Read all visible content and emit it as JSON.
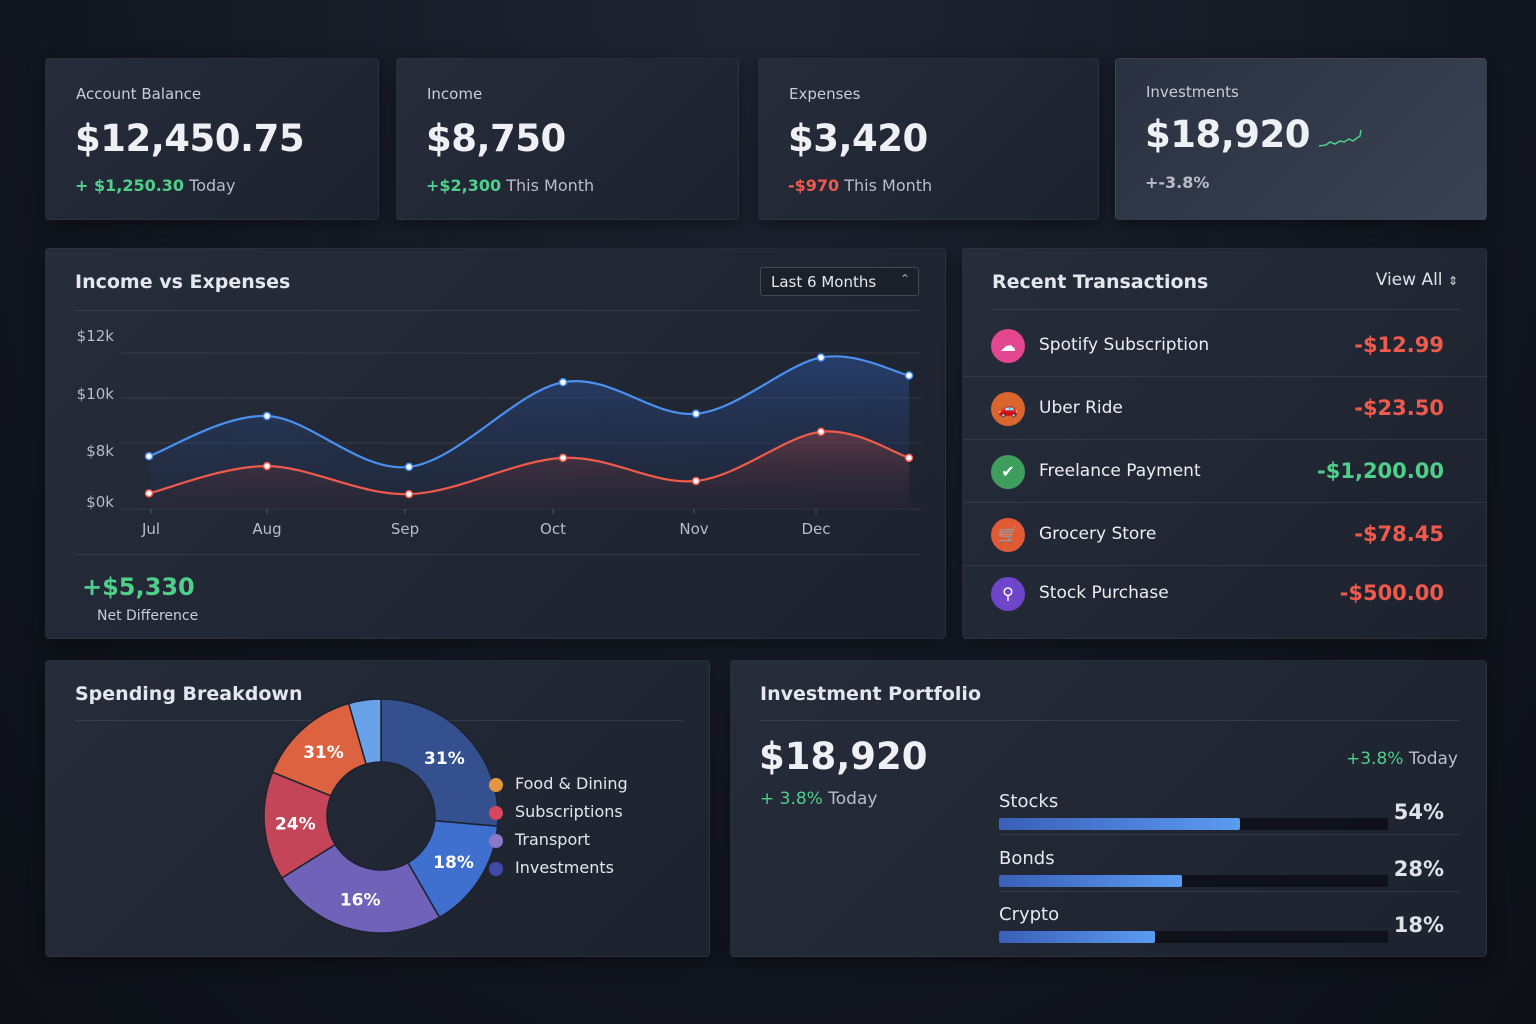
{
  "stats": [
    {
      "label": "Account Balance",
      "value": "$12,450.75",
      "change": "+ $1,250.30",
      "period": "Today",
      "trend": "positive"
    },
    {
      "label": "Income",
      "value": "$8,750",
      "change": "+$2,300",
      "period": "This Month",
      "trend": "positive"
    },
    {
      "label": "Expenses",
      "value": "$3,420",
      "change": "-$970",
      "period": "This Month",
      "trend": "negative"
    },
    {
      "label": "Investments",
      "value": "$18,920",
      "change": "+-3.8%",
      "period": "",
      "trend": "positive",
      "sparkline_icon": "sparkline-up"
    }
  ],
  "income_expenses": {
    "title": "Income vs Expenses",
    "range_select": "Last 6 Months",
    "net_value": "+$5,330",
    "net_label": "Net Difference"
  },
  "chart_data": {
    "type": "line",
    "categories": [
      "Jul",
      "Aug",
      "Sep",
      "Oct",
      "Nov",
      "Dec",
      ""
    ],
    "y_ticks": [
      "$0k",
      "$8k",
      "$10k",
      "$12k"
    ],
    "y_tick_values": [
      0,
      8,
      10,
      12
    ],
    "grid": true,
    "series": [
      {
        "values": [
          6.4,
          9.2,
          5.1,
          10.7,
          9.3,
          11.8,
          11.0
        ],
        "color": "#4a90f0"
      },
      {
        "values": [
          1.9,
          5.2,
          1.8,
          6.2,
          3.4,
          8.5,
          6.2
        ],
        "color": "#ef5a4c"
      }
    ]
  },
  "transactions": {
    "title": "Recent Transactions",
    "view_all": "View All",
    "items": [
      {
        "name": "Spotify Subscription",
        "amount": "-$12.99",
        "color": "#e2478f",
        "icon": "cloud-icon",
        "trend": "negative"
      },
      {
        "name": "Uber Ride",
        "amount": "-$23.50",
        "color": "#d9652f",
        "icon": "car-icon",
        "trend": "negative"
      },
      {
        "name": "Freelance Payment",
        "amount": "-$1,200.00",
        "color": "#3f9e5e",
        "icon": "check-icon",
        "trend": "positive"
      },
      {
        "name": "Grocery Store",
        "amount": "-$78.45",
        "color": "#e05a33",
        "icon": "basket-icon",
        "trend": "negative"
      },
      {
        "name": "Stock Purchase",
        "amount": "-$500.00",
        "color": "#6f45c9",
        "icon": "chart-search-icon",
        "trend": "negative"
      }
    ]
  },
  "spending": {
    "title": "Spending Breakdown",
    "slices": [
      {
        "label": "31%",
        "color": "#34508f"
      },
      {
        "label": "18%",
        "color": "#3f6fcf"
      },
      {
        "label": "16%",
        "color": "#6f62b8"
      },
      {
        "label": "24%",
        "color": "#c44458"
      },
      {
        "label": "31%",
        "color": "#dd6240"
      },
      {
        "label": "",
        "color": "#6aa2ea"
      }
    ],
    "legend": [
      {
        "label": "Food & Dining",
        "color": "#e3963f"
      },
      {
        "label": "Subscriptions",
        "color": "#d9455f"
      },
      {
        "label": "Transport",
        "color": "#8a78c8"
      },
      {
        "label": "Investments",
        "color": "#4149a8"
      }
    ]
  },
  "portfolio": {
    "title": "Investment Portfolio",
    "value": "$18,920",
    "change": "+ 3.8%",
    "period": "Today",
    "change_right": "+3.8%",
    "period_right": "Today",
    "assets": [
      {
        "name": "Stocks",
        "percent": "54%",
        "bar_fill": 0.62
      },
      {
        "name": "Bonds",
        "percent": "28%",
        "bar_fill": 0.47
      },
      {
        "name": "Crypto",
        "percent": "18%",
        "bar_fill": 0.4
      }
    ]
  }
}
